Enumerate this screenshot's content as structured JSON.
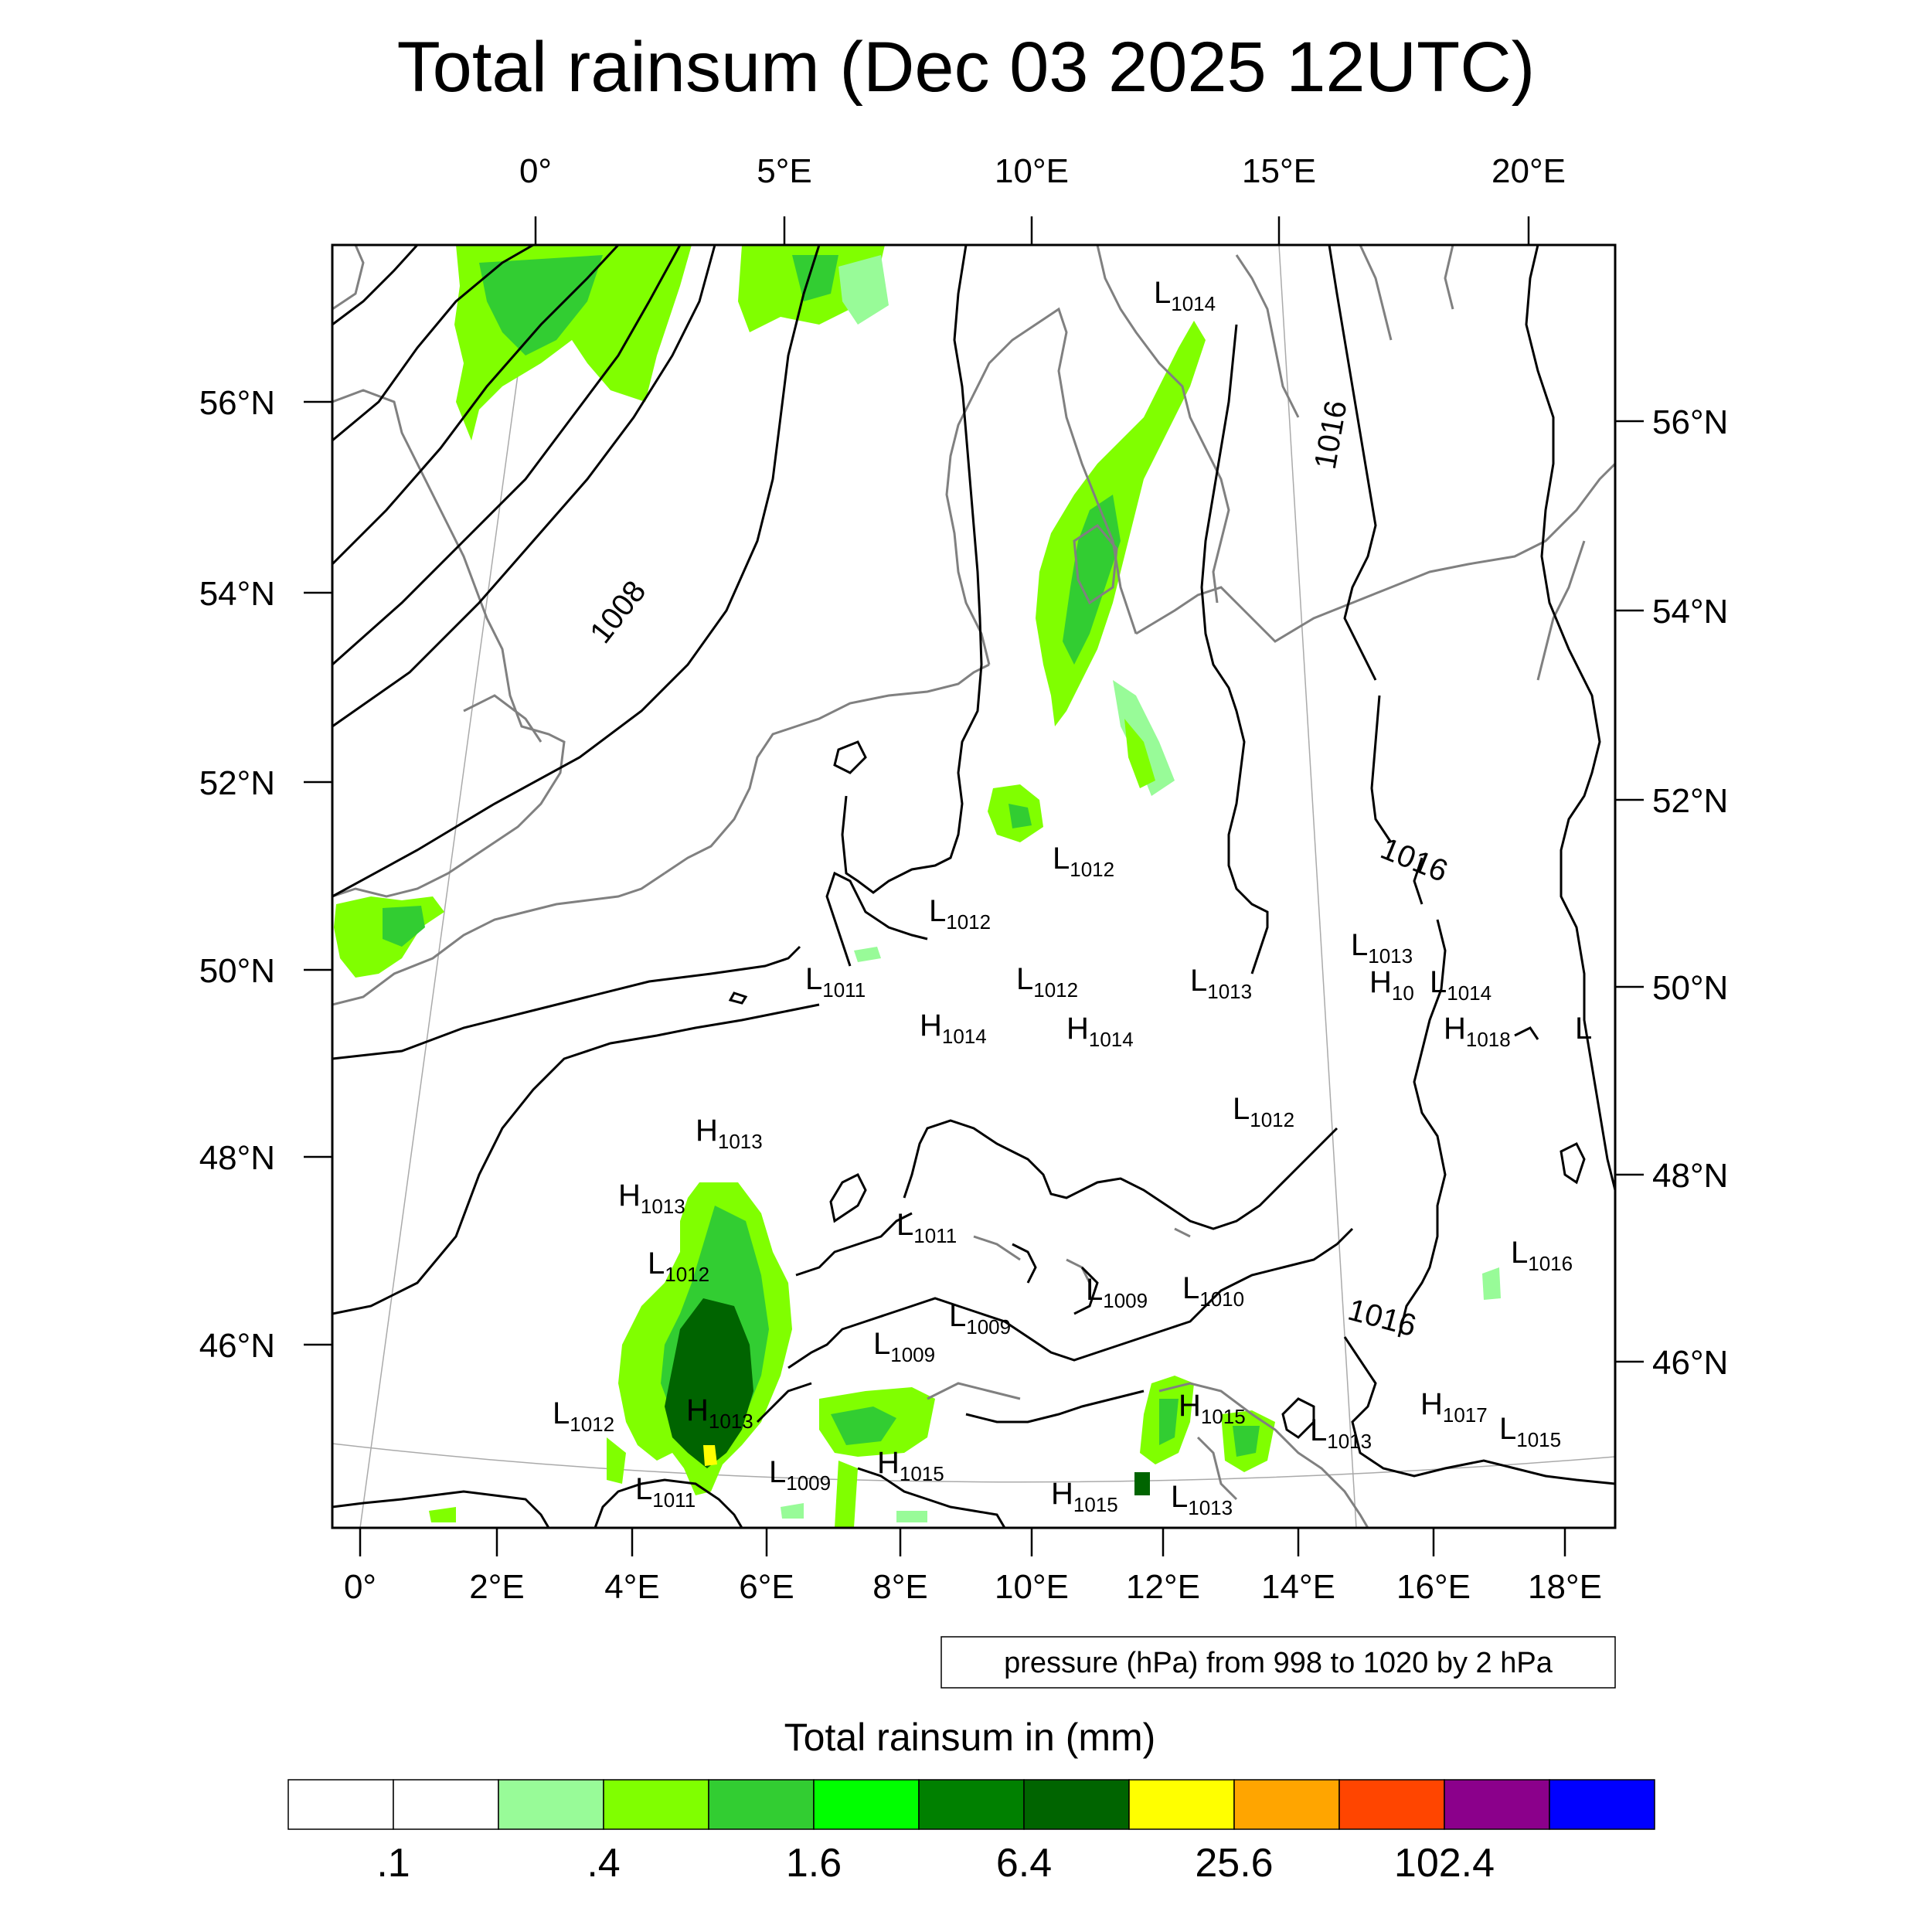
{
  "title": "Total rainsum (Dec 03 2025 12UTC)",
  "top_lon_labels": [
    "0°",
    "5°E",
    "10°E",
    "15°E",
    "20°E"
  ],
  "bottom_lon_labels": [
    "0°",
    "2°E",
    "4°E",
    "6°E",
    "8°E",
    "10°E",
    "12°E",
    "14°E",
    "16°E",
    "18°E"
  ],
  "left_lat_labels": [
    "56°N",
    "54°N",
    "52°N",
    "50°N",
    "48°N",
    "46°N"
  ],
  "right_lat_labels": [
    "56°N",
    "54°N",
    "52°N",
    "50°N",
    "48°N",
    "46°N"
  ],
  "contour_labels": [
    "1008",
    "1016",
    "1016",
    "1016"
  ],
  "pressure_centers": [
    {
      "type": "L",
      "value": "1014"
    },
    {
      "type": "L",
      "value": "1012"
    },
    {
      "type": "L",
      "value": "1012"
    },
    {
      "type": "L",
      "value": "1011"
    },
    {
      "type": "L",
      "value": "1012"
    },
    {
      "type": "L",
      "value": "1013"
    },
    {
      "type": "L",
      "value": "1013"
    },
    {
      "type": "H",
      "value": "10"
    },
    {
      "type": "L",
      "value": "1014"
    },
    {
      "type": "H",
      "value": "1014"
    },
    {
      "type": "H",
      "value": "1014"
    },
    {
      "type": "H",
      "value": "1018"
    },
    {
      "type": "L",
      "value": ""
    },
    {
      "type": "L",
      "value": "1012"
    },
    {
      "type": "H",
      "value": "1013"
    },
    {
      "type": "H",
      "value": "1013"
    },
    {
      "type": "L",
      "value": "1012"
    },
    {
      "type": "L",
      "value": "1011"
    },
    {
      "type": "L",
      "value": "1009"
    },
    {
      "type": "L",
      "value": "1009"
    },
    {
      "type": "L",
      "value": "1010"
    },
    {
      "type": "L",
      "value": "1016"
    },
    {
      "type": "L",
      "value": "1009"
    },
    {
      "type": "L",
      "value": "1012"
    },
    {
      "type": "H",
      "value": "1013"
    },
    {
      "type": "H",
      "value": "1015"
    },
    {
      "type": "L",
      "value": "1013"
    },
    {
      "type": "H",
      "value": "1017"
    },
    {
      "type": "L",
      "value": "1015"
    },
    {
      "type": "L",
      "value": "1011"
    },
    {
      "type": "L",
      "value": "1009"
    },
    {
      "type": "H",
      "value": "1015"
    },
    {
      "type": "H",
      "value": "1015"
    },
    {
      "type": "L",
      "value": "1013"
    }
  ],
  "pressure_note": "pressure (hPa) from 998 to 1020 by 2 hPa",
  "colorbar": {
    "title": "Total rainsum in (mm)",
    "colors": [
      "#ffffff",
      "#ffffff",
      "#98fb98",
      "#80ff00",
      "#32cd32",
      "#00ff00",
      "#008000",
      "#006400",
      "#ffff00",
      "#ffa500",
      "#ff4500",
      "#8b008b",
      "#0000ff"
    ],
    "tick_labels": [
      ".1",
      ".4",
      "1.6",
      "6.4",
      "25.6",
      "102.4"
    ]
  },
  "colors": {
    "coast": "#808080",
    "isobar": "#000000",
    "grid": "#aaaaaa"
  }
}
